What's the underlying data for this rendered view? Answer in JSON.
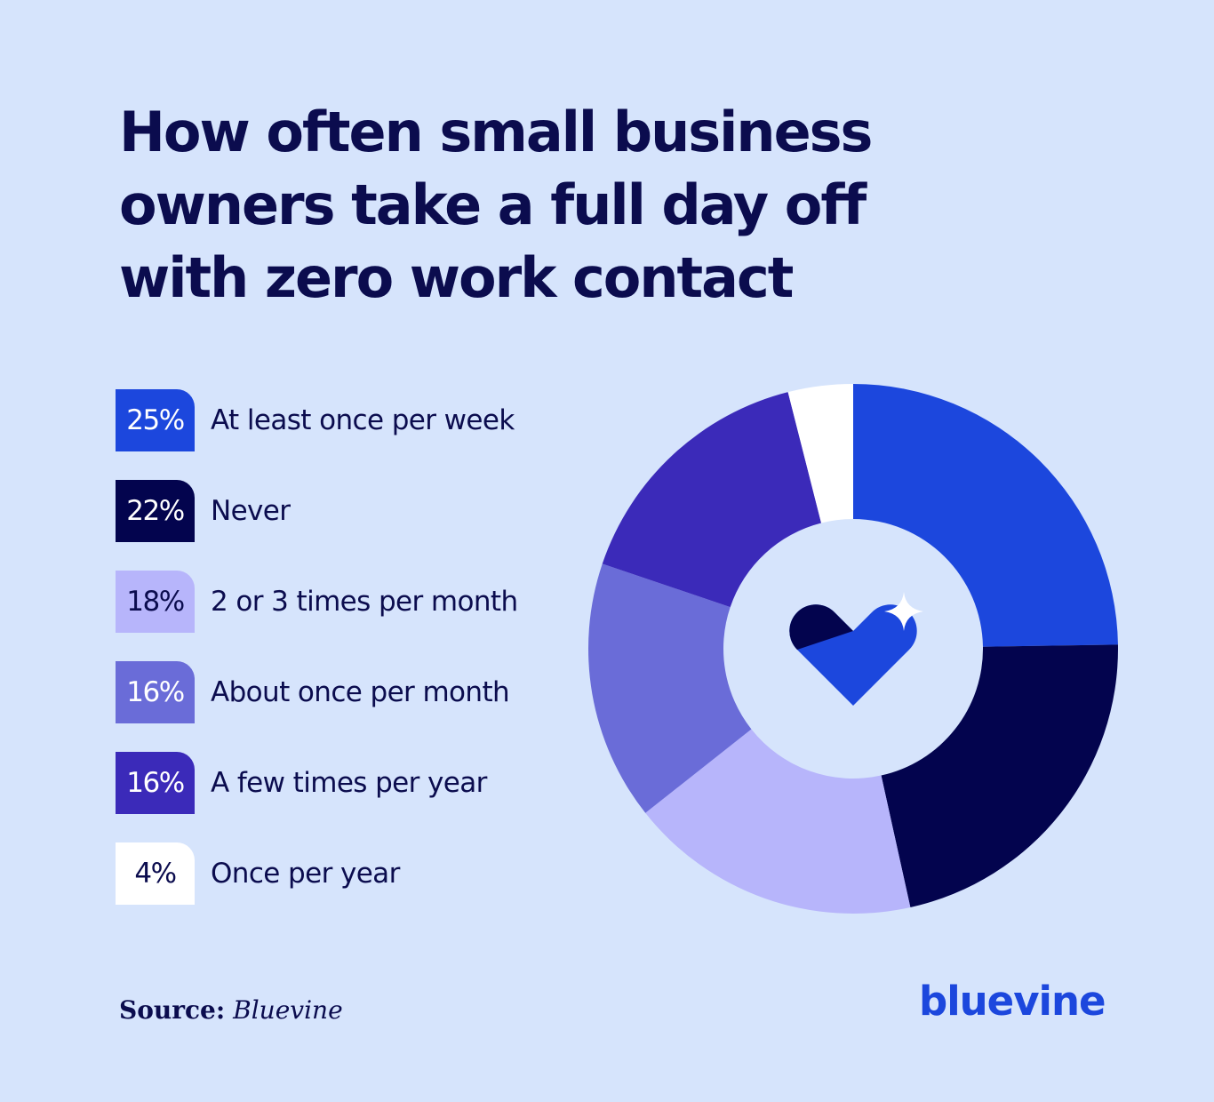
{
  "chart_data": {
    "type": "pie",
    "title": "How often small business owners take a full day off with zero work contact",
    "categories": [
      "At least once per week",
      "Never",
      "2 or 3 times per month",
      "About once per month",
      "A few times per year",
      "Once per year"
    ],
    "values": [
      25,
      22,
      18,
      16,
      16,
      4
    ],
    "labels": [
      "25%",
      "22%",
      "18%",
      "16%",
      "16%",
      "4%"
    ],
    "colors": [
      "#1c47dd",
      "#03044e",
      "#b7b5fb",
      "#6a6cd8",
      "#3b2ab9",
      "#ffffff"
    ],
    "label_colors": [
      "#ffffff",
      "#ffffff",
      "#0b0c4e",
      "#ffffff",
      "#ffffff",
      "#0b0c4e"
    ],
    "donut": true,
    "legend_position": "left"
  },
  "center_icon": "heart-sparkle-icon",
  "source": {
    "label": "Source:",
    "value": "Bluevine"
  },
  "brand": "bluevine"
}
